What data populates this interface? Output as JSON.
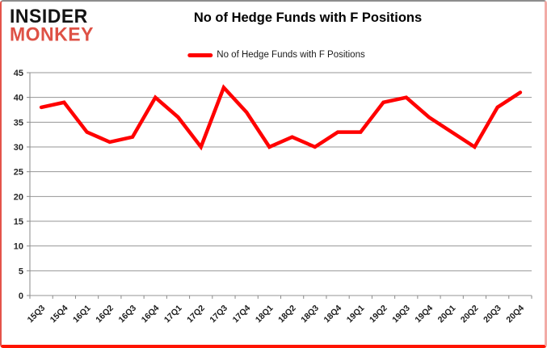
{
  "logo": {
    "line1": "INSIDER",
    "line2": "MONKEY"
  },
  "header": {
    "title": "No of Hedge Funds with F Positions"
  },
  "legend": {
    "label": "No of Hedge Funds with F Positions"
  },
  "colors": {
    "line": "#ff0000",
    "grid": "#969696",
    "axis": "#8a8a8a",
    "axis_text": "#262626",
    "logo_black": "#141414",
    "logo_red": "#de5145"
  },
  "chart_data": {
    "type": "line",
    "title": "No of Hedge Funds with F Positions",
    "categories": [
      "15Q3",
      "15Q4",
      "16Q1",
      "16Q2",
      "16Q3",
      "16Q4",
      "17Q1",
      "17Q2",
      "17Q3",
      "17Q4",
      "18Q1",
      "18Q2",
      "18Q3",
      "18Q4",
      "19Q1",
      "19Q2",
      "19Q3",
      "19Q4",
      "20Q1",
      "20Q2",
      "20Q3",
      "20Q4"
    ],
    "series": [
      {
        "name": "No of Hedge Funds with F Positions",
        "color": "#ff0000",
        "values": [
          38,
          39,
          33,
          31,
          32,
          40,
          36,
          30,
          42,
          37,
          30,
          32,
          30,
          33,
          33,
          39,
          40,
          36,
          33,
          30,
          38,
          41
        ]
      }
    ],
    "xlabel": "",
    "ylabel": "",
    "ylim": [
      0,
      45
    ],
    "ytick_step": 5,
    "grid": true,
    "legend_position": "top-center"
  }
}
